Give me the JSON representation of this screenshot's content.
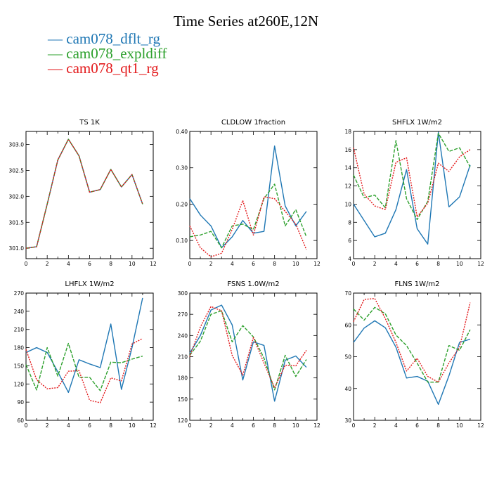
{
  "title": "Time Series at260E,12N",
  "legend": [
    {
      "label": "cam078_dflt_rg",
      "color": "#1f77b4",
      "dash": "solid"
    },
    {
      "label": "cam078_expldiff",
      "color": "#2ca02c",
      "dash": "dashed"
    },
    {
      "label": "cam078_qt1_rg",
      "color": "#e31a1c",
      "dash": "dotted"
    }
  ],
  "chart_data": [
    {
      "type": "line",
      "title": "TS   1K",
      "x": [
        0,
        1,
        2,
        3,
        4,
        5,
        6,
        7,
        8,
        9,
        10,
        11
      ],
      "xlim": [
        0,
        12
      ],
      "xticks": [
        "0",
        "2",
        "4",
        "6",
        "8",
        "10",
        "12"
      ],
      "ylim": [
        300.8,
        303.25
      ],
      "yticks": [
        "301.0",
        "301.5",
        "302.0",
        "302.5",
        "303.0"
      ],
      "series": [
        {
          "name": "cam078_dflt_rg",
          "values": [
            301.0,
            301.03,
            301.85,
            302.7,
            303.1,
            302.78,
            302.08,
            302.13,
            302.52,
            302.18,
            302.42,
            301.85
          ]
        },
        {
          "name": "cam078_expldiff",
          "values": [
            301.0,
            301.03,
            301.85,
            302.7,
            303.1,
            302.78,
            302.08,
            302.13,
            302.52,
            302.18,
            302.42,
            301.85
          ]
        },
        {
          "name": "cam078_qt1_rg",
          "values": [
            301.0,
            301.03,
            301.85,
            302.7,
            303.1,
            302.78,
            302.08,
            302.13,
            302.52,
            302.18,
            302.42,
            301.85
          ]
        }
      ]
    },
    {
      "type": "line",
      "title": "CLDLOW   1fraction",
      "x": [
        0,
        1,
        2,
        3,
        4,
        5,
        6,
        7,
        8,
        9,
        10,
        11
      ],
      "xlim": [
        0,
        12
      ],
      "xticks": [
        "0",
        "2",
        "4",
        "6",
        "8",
        "10",
        "12"
      ],
      "ylim": [
        0.05,
        0.4
      ],
      "yticks": [
        "0.10",
        "0.20",
        "0.30",
        "0.40"
      ],
      "series": [
        {
          "name": "cam078_dflt_rg",
          "values": [
            0.215,
            0.17,
            0.14,
            0.08,
            0.11,
            0.155,
            0.12,
            0.125,
            0.36,
            0.195,
            0.14,
            0.18
          ]
        },
        {
          "name": "cam078_expldiff",
          "values": [
            0.11,
            0.115,
            0.125,
            0.08,
            0.14,
            0.145,
            0.13,
            0.215,
            0.255,
            0.14,
            0.185,
            0.11
          ]
        },
        {
          "name": "cam078_qt1_rg",
          "values": [
            0.14,
            0.08,
            0.055,
            0.065,
            0.13,
            0.21,
            0.115,
            0.22,
            0.215,
            0.18,
            0.145,
            0.075
          ]
        }
      ]
    },
    {
      "type": "line",
      "title": "SHFLX   1W/m2",
      "x": [
        0,
        1,
        2,
        3,
        4,
        5,
        6,
        7,
        8,
        9,
        10,
        11
      ],
      "xlim": [
        0,
        12
      ],
      "xticks": [
        "0",
        "2",
        "4",
        "6",
        "8",
        "10",
        "12"
      ],
      "ylim": [
        4,
        18
      ],
      "yticks": [
        "4",
        "6",
        "8",
        "10",
        "12",
        "14",
        "16",
        "18"
      ],
      "series": [
        {
          "name": "cam078_dflt_rg",
          "values": [
            10.0,
            8.2,
            6.4,
            6.8,
            9.4,
            13.8,
            7.3,
            5.6,
            17.9,
            9.7,
            10.8,
            14.3
          ]
        },
        {
          "name": "cam078_expldiff",
          "values": [
            13.2,
            10.7,
            11.0,
            9.6,
            17.0,
            10.6,
            8.3,
            10.3,
            17.8,
            15.8,
            16.2,
            14.1
          ]
        },
        {
          "name": "cam078_qt1_rg",
          "values": [
            16.2,
            11.1,
            9.8,
            9.4,
            14.6,
            15.1,
            8.6,
            10.1,
            14.5,
            13.6,
            15.2,
            16.0
          ]
        }
      ]
    },
    {
      "type": "line",
      "title": "LHFLX   1W/m2",
      "x": [
        0,
        1,
        2,
        3,
        4,
        5,
        6,
        7,
        8,
        9,
        10,
        11
      ],
      "xlim": [
        0,
        12
      ],
      "xticks": [
        "0",
        "2",
        "4",
        "6",
        "8",
        "10",
        "12"
      ],
      "ylim": [
        60,
        270
      ],
      "yticks": [
        "60",
        "90",
        "120",
        "150",
        "180",
        "210",
        "240",
        "270"
      ],
      "series": [
        {
          "name": "cam078_dflt_rg",
          "values": [
            172,
            180,
            172,
            140,
            106,
            160,
            153,
            147,
            219,
            111,
            180,
            262
          ]
        },
        {
          "name": "cam078_expldiff",
          "values": [
            152,
            110,
            180,
            133,
            187,
            131,
            131,
            109,
            156,
            155,
            161,
            166
          ]
        },
        {
          "name": "cam078_qt1_rg",
          "values": [
            177,
            127,
            112,
            114,
            141,
            142,
            93,
            89,
            130,
            125,
            186,
            195
          ]
        }
      ]
    },
    {
      "type": "line",
      "title": "FSNS   1.0W/m2",
      "x": [
        0,
        1,
        2,
        3,
        4,
        5,
        6,
        7,
        8,
        9,
        10,
        11
      ],
      "xlim": [
        0,
        12
      ],
      "xticks": [
        "0",
        "2",
        "4",
        "6",
        "8",
        "10",
        "12"
      ],
      "ylim": [
        120,
        300
      ],
      "yticks": [
        "120",
        "150",
        "180",
        "210",
        "240",
        "270",
        "300"
      ],
      "series": [
        {
          "name": "cam078_dflt_rg",
          "values": [
            215,
            240,
            276,
            283,
            255,
            177,
            231,
            226,
            147,
            205,
            211,
            195
          ]
        },
        {
          "name": "cam078_expldiff",
          "values": [
            212,
            232,
            270,
            275,
            231,
            254,
            238,
            208,
            163,
            212,
            182,
            206
          ]
        },
        {
          "name": "cam078_qt1_rg",
          "values": [
            210,
            252,
            281,
            275,
            212,
            184,
            237,
            201,
            166,
            198,
            197,
            219
          ]
        }
      ]
    },
    {
      "type": "line",
      "title": "FLNS   1W/m2",
      "x": [
        0,
        1,
        2,
        3,
        4,
        5,
        6,
        7,
        8,
        9,
        10,
        11
      ],
      "xlim": [
        0,
        12
      ],
      "xticks": [
        "0",
        "2",
        "4",
        "6",
        "8",
        "10",
        "12"
      ],
      "ylim": [
        30,
        70
      ],
      "yticks": [
        "30",
        "40",
        "50",
        "60",
        "70"
      ],
      "series": [
        {
          "name": "cam078_dflt_rg",
          "values": [
            54.5,
            59.0,
            61.3,
            59.1,
            53.0,
            43.3,
            43.8,
            42.3,
            35.0,
            44.0,
            54.5,
            55.5
          ]
        },
        {
          "name": "cam078_expldiff",
          "values": [
            65.0,
            61.5,
            65.5,
            63.5,
            56.8,
            53.5,
            48.0,
            42.0,
            42.0,
            53.5,
            52.0,
            58.5
          ]
        },
        {
          "name": "cam078_qt1_rg",
          "values": [
            61.0,
            68.0,
            68.3,
            62.0,
            54.5,
            45.5,
            49.5,
            43.8,
            42.0,
            48.0,
            53.0,
            67.0
          ]
        }
      ]
    }
  ]
}
